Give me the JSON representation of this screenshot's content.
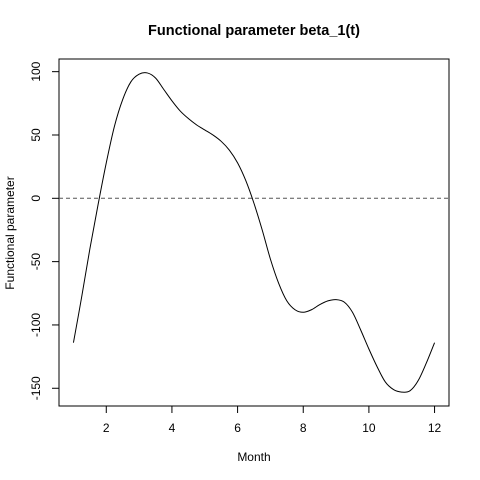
{
  "chart_data": {
    "type": "line",
    "title": "Functional parameter beta_1(t)",
    "xlabel": "Month",
    "ylabel": "Functional parameter",
    "xlim": [
      0.56,
      12.44
    ],
    "ylim": [
      -164,
      110
    ],
    "x_ticks": [
      2,
      4,
      6,
      8,
      10,
      12
    ],
    "x_tick_labels": [
      "2",
      "4",
      "6",
      "8",
      "10",
      "12"
    ],
    "y_ticks": [
      -150,
      -100,
      -50,
      0,
      50,
      100
    ],
    "y_tick_labels": [
      "-150",
      "-100",
      "-50",
      "0",
      "50",
      "100"
    ],
    "grid": false,
    "reference_line": {
      "y": 0,
      "style": "dashed"
    },
    "series": [
      {
        "color": "#000000",
        "x": [
          1.0,
          1.25,
          1.5,
          1.75,
          2.0,
          2.25,
          2.5,
          2.75,
          3.0,
          3.25,
          3.5,
          3.75,
          4.0,
          4.25,
          4.5,
          4.75,
          5.0,
          5.25,
          5.5,
          5.75,
          6.0,
          6.25,
          6.5,
          6.75,
          7.0,
          7.25,
          7.5,
          7.75,
          8.0,
          8.25,
          8.5,
          8.75,
          9.0,
          9.25,
          9.5,
          9.75,
          10.0,
          10.25,
          10.5,
          10.75,
          11.0,
          11.25,
          11.5,
          11.75,
          12.0
        ],
        "y": [
          -114,
          -78,
          -40,
          -5,
          28,
          57,
          78,
          92,
          98,
          99,
          95,
          86,
          77,
          69,
          63,
          58,
          54,
          50,
          45,
          38,
          28,
          14,
          -4,
          -25,
          -48,
          -67,
          -81,
          -88,
          -90,
          -88,
          -84,
          -81,
          -80,
          -82,
          -90,
          -104,
          -119,
          -133,
          -145,
          -151,
          -153,
          -152,
          -144,
          -130,
          -114
        ]
      }
    ]
  }
}
